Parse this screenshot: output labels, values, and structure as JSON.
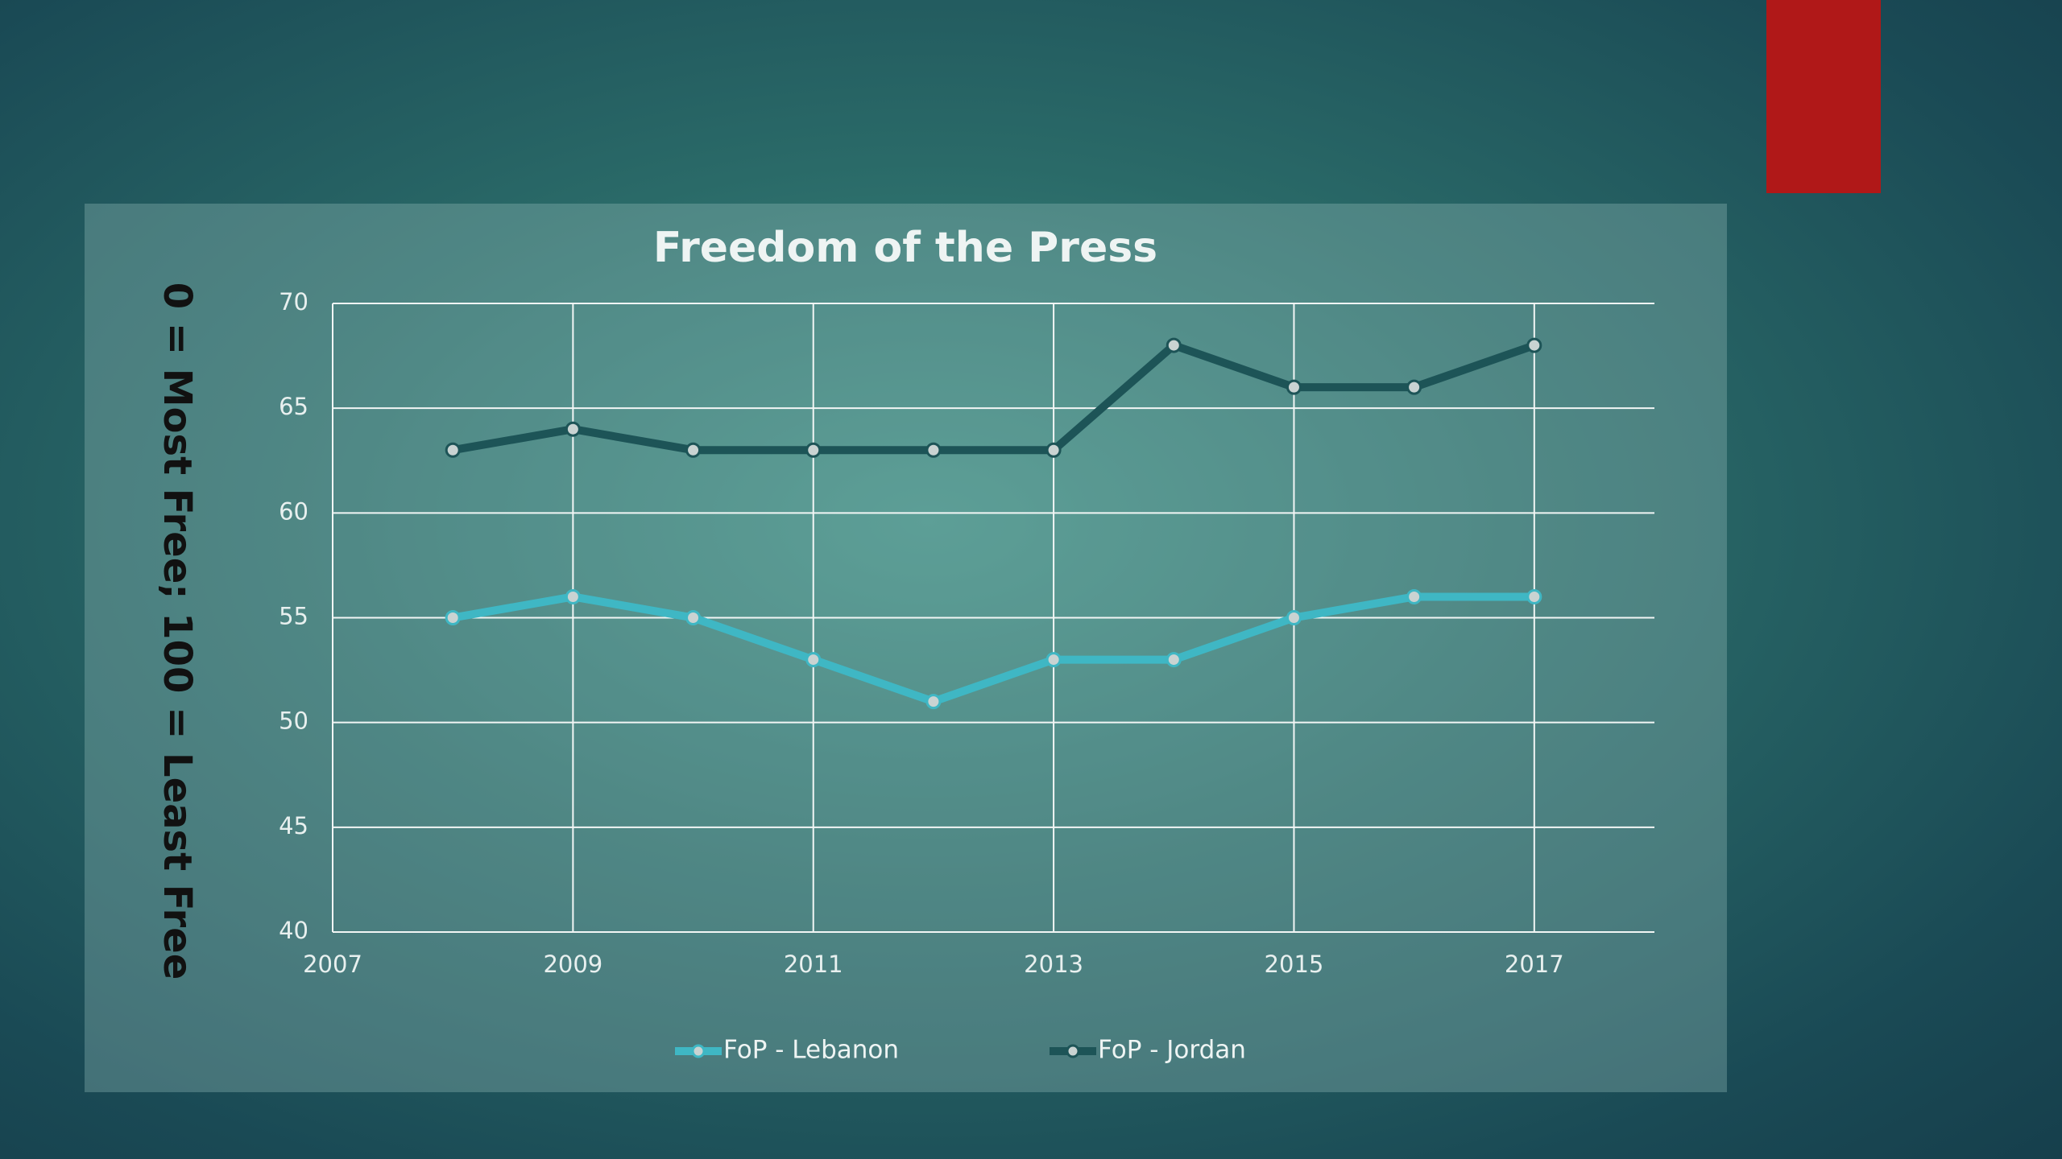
{
  "chart_data": {
    "type": "line",
    "title": "Freedom of the Press",
    "ylabel": "0 = Most Free; 100 = Least Free",
    "x": [
      2008,
      2009,
      2010,
      2011,
      2012,
      2013,
      2014,
      2015,
      2016,
      2017
    ],
    "series": [
      {
        "name": "FoP - Lebanon",
        "color": "#3fb7c4",
        "values": [
          55,
          56,
          55,
          53,
          51,
          53,
          53,
          55,
          56,
          56
        ]
      },
      {
        "name": "FoP - Jordan",
        "color": "#1d5457",
        "values": [
          63,
          64,
          63,
          63,
          63,
          63,
          68,
          66,
          66,
          68
        ]
      }
    ],
    "xlim": [
      2007,
      2018
    ],
    "xticks": [
      2007,
      2009,
      2011,
      2013,
      2015,
      2017
    ],
    "ylim": [
      40,
      70
    ],
    "yticks": [
      40,
      45,
      50,
      55,
      60,
      65,
      70
    ],
    "grid": true
  }
}
